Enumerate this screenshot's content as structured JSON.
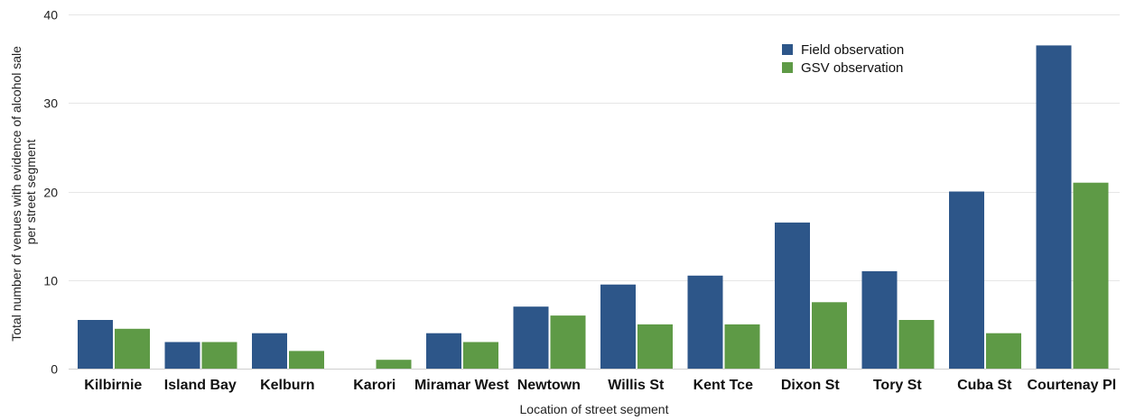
{
  "chart_data": {
    "type": "bar",
    "categories": [
      "Kilbirnie",
      "Island Bay",
      "Kelburn",
      "Karori",
      "Miramar West",
      "Newtown",
      "Willis St",
      "Kent Tce",
      "Dixon St",
      "Tory St",
      "Cuba St",
      "Courtenay Pl"
    ],
    "series": [
      {
        "name": "Field observation",
        "color": "#2d5689",
        "values": [
          5.5,
          3,
          4,
          0,
          4,
          7,
          9.5,
          10.5,
          16.5,
          11,
          20,
          36.5
        ]
      },
      {
        "name": "GSV observation",
        "color": "#5e9a46",
        "values": [
          4.5,
          3,
          2,
          1,
          3,
          6,
          5,
          5,
          7.5,
          5.5,
          4,
          21
        ]
      }
    ],
    "xlabel": "Location of street segment",
    "ylabel_lines": [
      "Total number of venues with evidence of alcohol sale",
      "per street segment"
    ],
    "ylim": [
      0,
      40
    ],
    "yticks": [
      0,
      10,
      20,
      30,
      40
    ],
    "grid": true,
    "legend_position": "top-right"
  }
}
